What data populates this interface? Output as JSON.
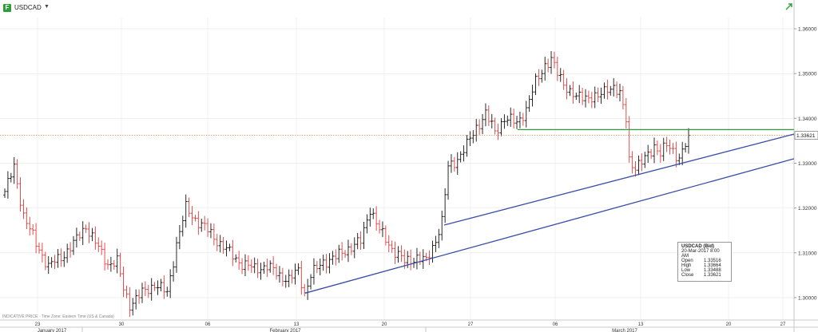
{
  "window": {
    "symbol": "USDCAD"
  },
  "footnote": "INDICATIVE PRICE · Time Zone: Eastern Time (US & Canada)",
  "infobox": {
    "title": "USDCAD (Bid)",
    "datetime": "20-Mar-2017 8:00 AM",
    "rows": [
      {
        "label": "Open",
        "value": "1.33516"
      },
      {
        "label": "High",
        "value": "1.33664"
      },
      {
        "label": "Low",
        "value": "1.33488"
      },
      {
        "label": "Close",
        "value": "1.33621"
      }
    ]
  },
  "colors": {
    "up": "#111111",
    "down": "#e03a3a",
    "trend": "#3a4ea8",
    "resistance": "#2e9e3a",
    "price_line": "#e08a4a",
    "grid": "#e6e6e6"
  },
  "chart_data": {
    "type": "ohlc-bar",
    "timeframe": "4H",
    "ylim": [
      1.295,
      1.3625
    ],
    "y_ticks": [
      "1.30000",
      "1.31000",
      "1.32000",
      "1.33000",
      "1.34000",
      "1.35000",
      "1.36000"
    ],
    "x_ticks": [
      "23",
      "30",
      "06",
      "13",
      "20",
      "27",
      "06",
      "13",
      "20",
      "27"
    ],
    "month_labels": [
      "January 2017",
      "February 2017",
      "March 2017"
    ],
    "last_price": "1.33621",
    "anchors": [
      [
        0,
        1.3237
      ],
      [
        3,
        1.329
      ],
      [
        6,
        1.3185
      ],
      [
        10,
        1.312
      ],
      [
        14,
        1.307
      ],
      [
        18,
        1.309
      ],
      [
        22,
        1.312
      ],
      [
        26,
        1.316
      ],
      [
        30,
        1.311
      ],
      [
        33,
        1.3075
      ],
      [
        36,
        1.308
      ],
      [
        38,
        1.302
      ],
      [
        40,
        1.2985
      ],
      [
        44,
        1.301
      ],
      [
        48,
        1.303
      ],
      [
        52,
        1.301
      ],
      [
        55,
        1.312
      ],
      [
        58,
        1.32
      ],
      [
        61,
        1.3175
      ],
      [
        65,
        1.315
      ],
      [
        69,
        1.312
      ],
      [
        72,
        1.31
      ],
      [
        76,
        1.3075
      ],
      [
        80,
        1.3065
      ],
      [
        84,
        1.307
      ],
      [
        88,
        1.305
      ],
      [
        91,
        1.304
      ],
      [
        94,
        1.306
      ],
      [
        96,
        1.301
      ],
      [
        98,
        1.305
      ],
      [
        102,
        1.308
      ],
      [
        106,
        1.309
      ],
      [
        110,
        1.311
      ],
      [
        114,
        1.3125
      ],
      [
        117,
        1.32
      ],
      [
        120,
        1.315
      ],
      [
        124,
        1.311
      ],
      [
        128,
        1.308
      ],
      [
        132,
        1.309
      ],
      [
        135,
        1.308
      ],
      [
        138,
        1.313
      ],
      [
        140,
        1.317
      ],
      [
        142,
        1.329
      ],
      [
        145,
        1.331
      ],
      [
        148,
        1.334
      ],
      [
        151,
        1.338
      ],
      [
        154,
        1.341
      ],
      [
        157,
        1.337
      ],
      [
        160,
        1.34
      ],
      [
        164,
        1.339
      ],
      [
        167,
        1.342
      ],
      [
        170,
        1.348
      ],
      [
        173,
        1.352
      ],
      [
        175,
        1.353
      ],
      [
        177,
        1.35
      ],
      [
        179,
        1.348
      ],
      [
        181,
        1.346
      ],
      [
        183,
        1.3445
      ],
      [
        186,
        1.345
      ],
      [
        190,
        1.3445
      ],
      [
        193,
        1.347
      ],
      [
        195,
        1.347
      ],
      [
        197,
        1.345
      ],
      [
        199,
        1.34
      ],
      [
        200,
        1.331
      ],
      [
        202,
        1.329
      ],
      [
        204,
        1.33
      ],
      [
        206,
        1.332
      ],
      [
        208,
        1.334
      ],
      [
        210,
        1.332
      ],
      [
        212,
        1.334
      ],
      [
        214,
        1.333
      ],
      [
        216,
        1.331
      ],
      [
        218,
        1.334
      ],
      [
        219,
        1.33621
      ]
    ],
    "trendlines": [
      {
        "name": "upper-support",
        "color_key": "trend",
        "x": [
          "2017-02-24",
          "2017-03-21"
        ],
        "y": [
          1.3162,
          1.3365
        ]
      },
      {
        "name": "lower-support",
        "color_key": "trend",
        "x": [
          "2017-02-13",
          "2017-03-21"
        ],
        "y": [
          1.301,
          1.331
        ]
      },
      {
        "name": "resistance",
        "color_key": "resistance",
        "x": [
          "2017-03-02",
          "2017-03-21"
        ],
        "y": [
          1.3375,
          1.3375
        ]
      }
    ]
  }
}
